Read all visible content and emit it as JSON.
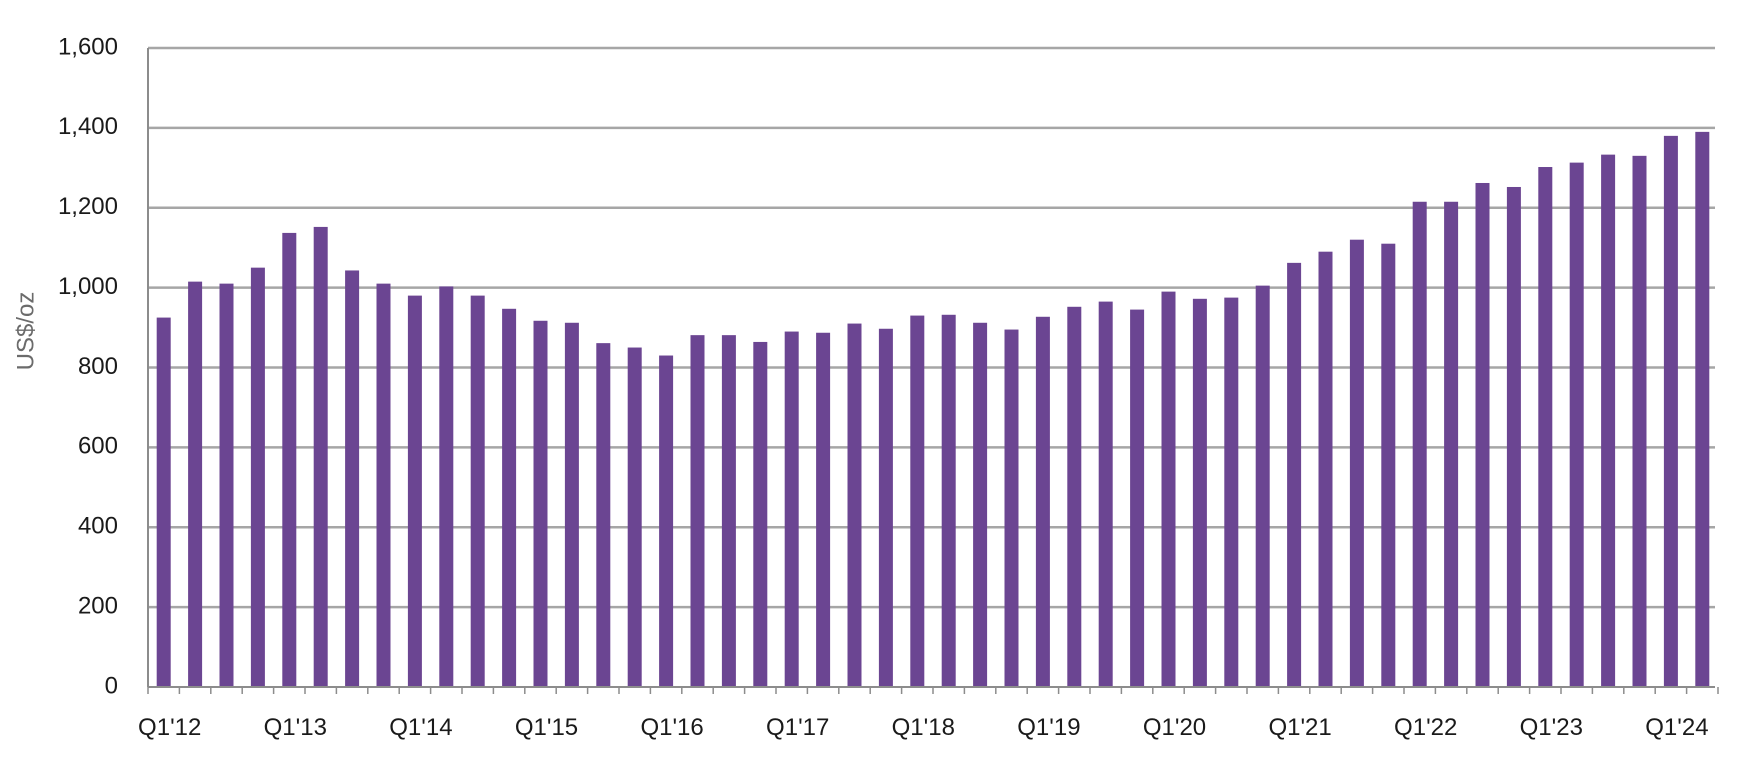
{
  "chart_data": {
    "type": "bar",
    "title": "",
    "xlabel": "",
    "ylabel": "US$/oz",
    "ylim": [
      0,
      1600
    ],
    "yticks": [
      "0",
      "200",
      "400",
      "600",
      "800",
      "1,000",
      "1,200",
      "1,400",
      "1,600"
    ],
    "ytick_values": [
      0,
      200,
      400,
      600,
      800,
      1000,
      1200,
      1400,
      1600
    ],
    "xtick_labels": [
      "Q1'12",
      "Q1'13",
      "Q1'14",
      "Q1'15",
      "Q1'16",
      "Q1'17",
      "Q1'18",
      "Q1'19",
      "Q1'20",
      "Q1'21",
      "Q1'22",
      "Q1'23",
      "Q1'24"
    ],
    "grid": true,
    "legend": "none",
    "bar_color": "#6b4592",
    "categories": [
      "Q1'12",
      "Q2'12",
      "Q3'12",
      "Q4'12",
      "Q1'13",
      "Q2'13",
      "Q3'13",
      "Q4'13",
      "Q1'14",
      "Q2'14",
      "Q3'14",
      "Q4'14",
      "Q1'15",
      "Q2'15",
      "Q3'15",
      "Q4'15",
      "Q1'16",
      "Q2'16",
      "Q3'16",
      "Q4'16",
      "Q1'17",
      "Q2'17",
      "Q3'17",
      "Q4'17",
      "Q1'18",
      "Q2'18",
      "Q3'18",
      "Q4'18",
      "Q1'19",
      "Q2'19",
      "Q3'19",
      "Q4'19",
      "Q1'20",
      "Q2'20",
      "Q3'20",
      "Q4'20",
      "Q1'21",
      "Q2'21",
      "Q3'21",
      "Q4'21",
      "Q1'22",
      "Q2'22",
      "Q3'22",
      "Q4'22",
      "Q1'23",
      "Q2'23",
      "Q3'23",
      "Q4'23",
      "Q1'24",
      "Q2'24"
    ],
    "values": [
      925,
      1015,
      1010,
      1050,
      1137,
      1152,
      1043,
      1010,
      980,
      1003,
      980,
      947,
      917,
      912,
      861,
      850,
      830,
      881,
      881,
      864,
      890,
      887,
      910,
      897,
      930,
      932,
      912,
      895,
      927,
      952,
      965,
      945,
      990,
      972,
      975,
      1005,
      1062,
      1090,
      1120,
      1110,
      1215,
      1215,
      1262,
      1252,
      1302,
      1313,
      1333,
      1330,
      1380,
      1390
    ]
  }
}
